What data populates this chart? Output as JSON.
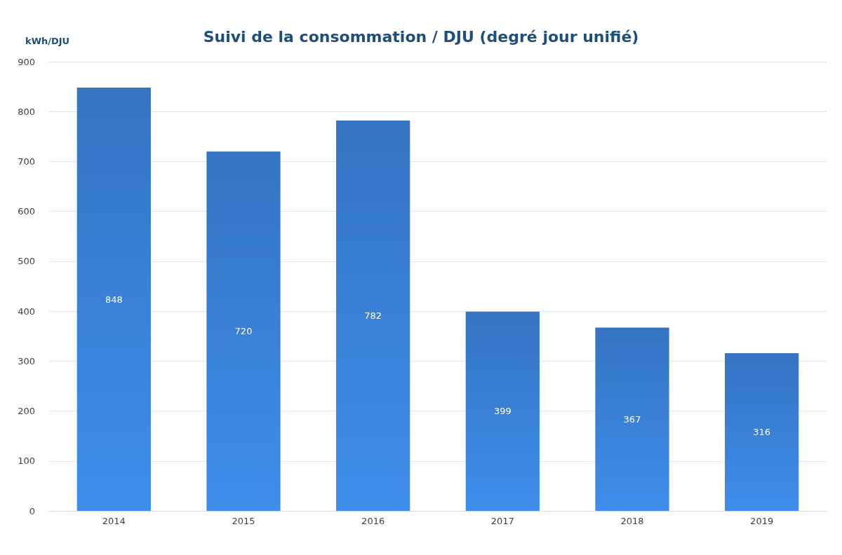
{
  "chart_data": {
    "type": "bar",
    "title": "Suivi de la consommation / DJU (degré jour unifié)",
    "ylabel": "kWh/DJU",
    "categories": [
      "2014",
      "2015",
      "2016",
      "2017",
      "2018",
      "2019"
    ],
    "values": [
      848,
      720,
      782,
      399,
      367,
      316
    ],
    "color": "#3474c2",
    "ylim": [
      0,
      900
    ],
    "yticks": [
      0,
      100,
      200,
      300,
      400,
      500,
      600,
      700,
      800,
      900
    ],
    "grid": "y",
    "data_labels": true
  }
}
